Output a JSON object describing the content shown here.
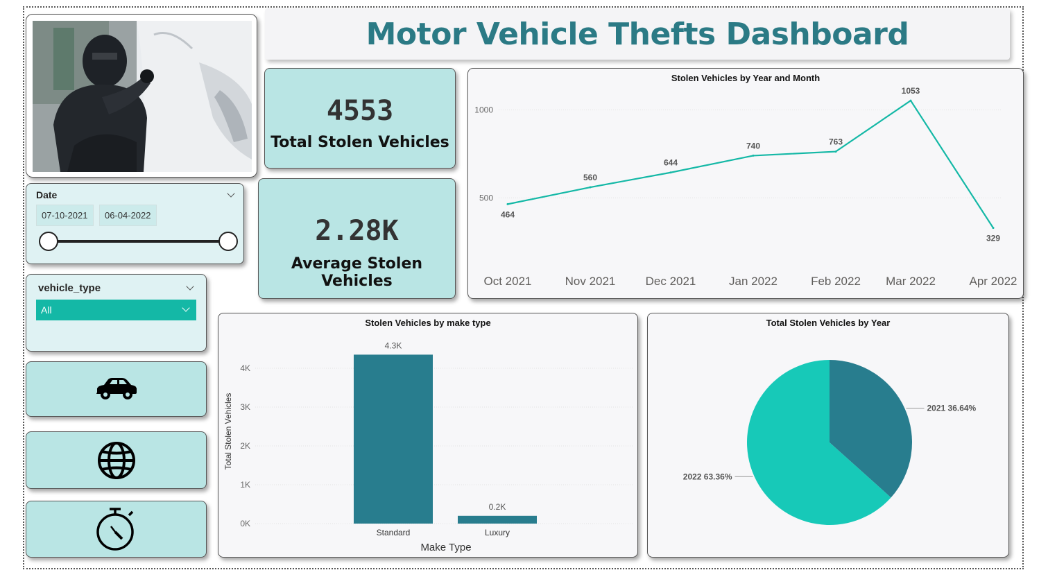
{
  "title": "Motor Vehicle Thefts Dashboard",
  "kpis": {
    "total": {
      "value": "4553",
      "label": "Total Stolen Vehicles"
    },
    "average": {
      "value": "2.28K",
      "label": "Average Stolen Vehicles"
    }
  },
  "date_slicer": {
    "title": "Date",
    "start": "07-10-2021",
    "end": "06-04-2022"
  },
  "vehicle_slicer": {
    "title": "vehicle_type",
    "selected": "All"
  },
  "nav_icons": [
    "car-icon",
    "globe-icon",
    "stopwatch-icon"
  ],
  "colors": {
    "accent": "#14b8a6",
    "dark_teal": "#287d8e",
    "pie_light": "#17c9b8",
    "card_teal": "#b9e5e4"
  },
  "chart_data": [
    {
      "type": "line",
      "title": "Stolen Vehicles by Year and Month",
      "x": [
        "Oct 2021",
        "Nov 2021",
        "Dec 2021",
        "Jan 2022",
        "Feb 2022",
        "Mar 2022",
        "Apr 2022"
      ],
      "values": [
        464,
        560,
        644,
        740,
        763,
        1053,
        329
      ],
      "data_labels": [
        "464",
        "560",
        "644",
        "740",
        "763",
        "1053",
        "329"
      ],
      "yticks": [
        "1000",
        "500"
      ],
      "ylim": [
        240,
        1300
      ],
      "grid": true
    },
    {
      "type": "bar",
      "title": "Stolen Vehicles by make type",
      "categories": [
        "Standard",
        "Luxury"
      ],
      "values": [
        4350,
        200
      ],
      "data_labels": [
        "4.3K",
        "0.2K"
      ],
      "yticks": [
        "0K",
        "1K",
        "2K",
        "3K",
        "4K"
      ],
      "xlabel": "Make Type",
      "ylabel": "Total Stolen Vehicles",
      "ylim": [
        0,
        4400
      ],
      "grid": true
    },
    {
      "type": "pie",
      "title": "Total Stolen Vehicles by Year",
      "slices": [
        {
          "label": "2021 36.64%",
          "percent": 36.64,
          "color": "#287d8e"
        },
        {
          "label": "2022 63.36%",
          "percent": 63.36,
          "color": "#17c9b8"
        }
      ]
    }
  ]
}
